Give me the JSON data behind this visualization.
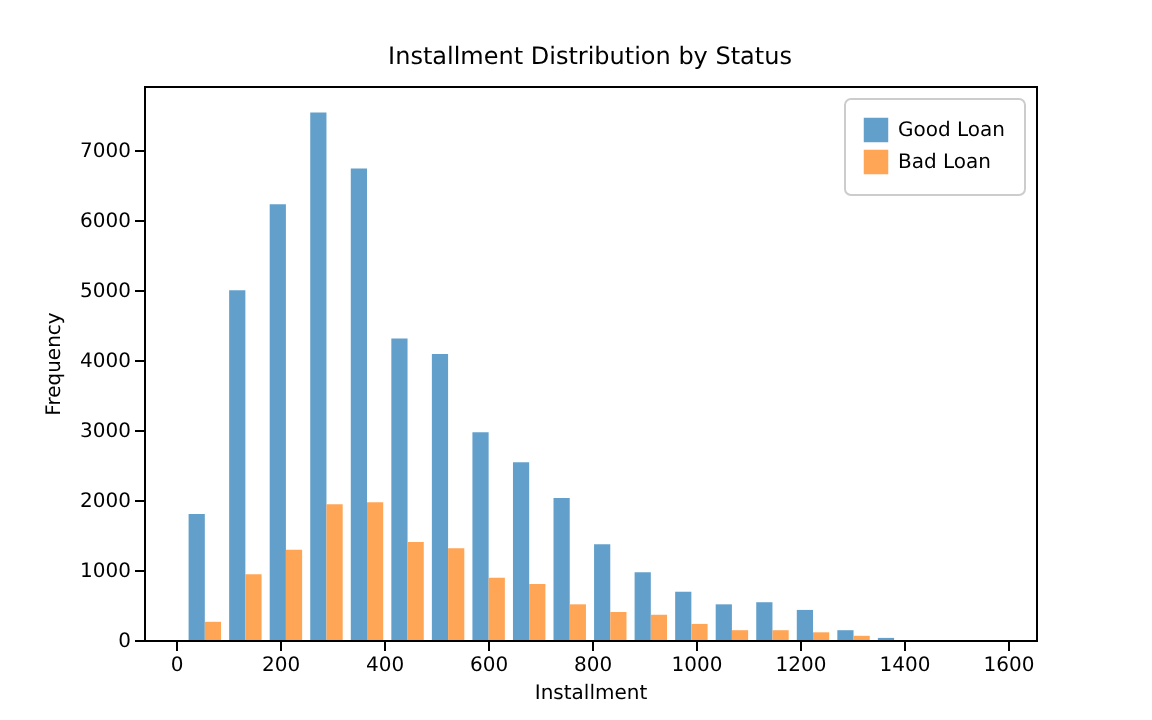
{
  "chart_data": {
    "type": "histogram",
    "title": "Installment Distribution by Status",
    "xlabel": "Installment",
    "ylabel": "Frequency",
    "bins": [
      16,
      94,
      172,
      250,
      328,
      406,
      484,
      562,
      640,
      718,
      796,
      874,
      952,
      1030,
      1108,
      1186,
      1264,
      1342,
      1420,
      1498,
      1576
    ],
    "series": [
      {
        "name": "Good Loan",
        "color": "#62a0cb",
        "values": [
          1800,
          5000,
          6230,
          7540,
          6740,
          4310,
          4090,
          2970,
          2540,
          2030,
          1370,
          970,
          690,
          510,
          540,
          430,
          140,
          30,
          0,
          0
        ]
      },
      {
        "name": "Bad Loan",
        "color": "#ffa556",
        "values": [
          260,
          940,
          1290,
          1940,
          1970,
          1400,
          1310,
          890,
          800,
          510,
          400,
          360,
          230,
          140,
          140,
          110,
          60,
          0,
          0,
          0
        ]
      }
    ],
    "xlim": [
      -62,
      1654
    ],
    "xticks": [
      0,
      200,
      400,
      600,
      800,
      1000,
      1200,
      1400,
      1600
    ],
    "ylim": [
      0,
      7920
    ],
    "yticks": [
      0,
      1000,
      2000,
      3000,
      4000,
      5000,
      6000,
      7000
    ],
    "grid": false,
    "legend": "top right"
  }
}
